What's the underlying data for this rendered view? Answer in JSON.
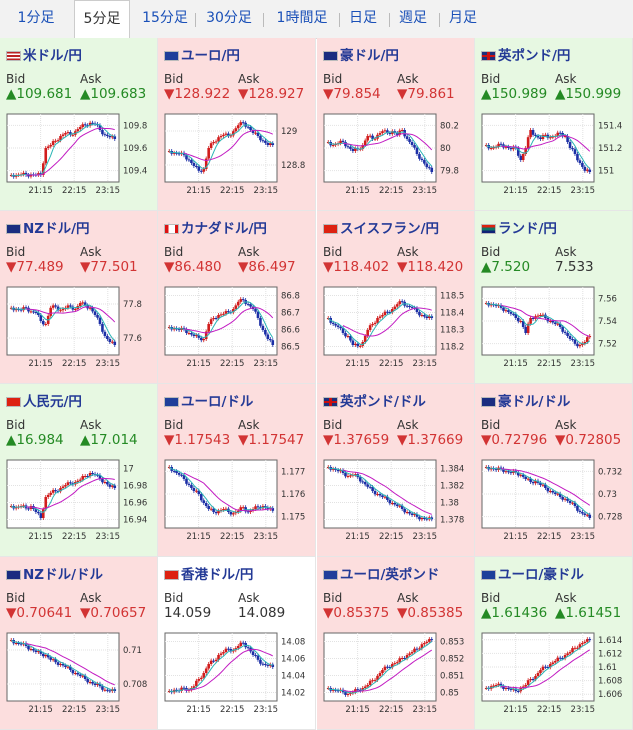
{
  "tabs": [
    "1分足",
    "5分足",
    "15分足",
    "30分足",
    "1時間足",
    "日足",
    "週足",
    "月足"
  ],
  "active_tab": 1,
  "labels": {
    "bid": "Bid",
    "ask": "Ask"
  },
  "colors": {
    "up_bg": "#e7f8e2",
    "down_bg": "#fcdede",
    "bull": "#d11c1c",
    "bear": "#1c2fa6",
    "ma1": "#2ab5b5",
    "ma2": "#c21bc2"
  },
  "x_ticks": [
    "21:15",
    "22:15",
    "23:15"
  ],
  "pairs": [
    {
      "name": "米ドル/円",
      "flag": "us",
      "dir": "up",
      "bid": "▲109.681",
      "ask": "▲109.683",
      "yticks": [
        "109.8",
        "109.6",
        "109.4"
      ],
      "series": [
        0.05,
        0.05,
        0.06,
        0.05,
        0.06,
        0.05,
        0.05,
        0.5,
        0.55,
        0.62,
        0.7,
        0.75,
        0.72,
        0.78,
        0.85,
        0.88,
        0.92,
        0.9,
        0.8,
        0.72,
        0.68,
        0.65
      ]
    },
    {
      "name": "ユーロ/円",
      "flag": "eu",
      "dir": "down",
      "bid": "▼128.922",
      "ask": "▼128.927",
      "yticks": [
        "129",
        "128.8"
      ],
      "series": [
        0.45,
        0.42,
        0.4,
        0.38,
        0.3,
        0.2,
        0.12,
        0.15,
        0.5,
        0.6,
        0.68,
        0.72,
        0.7,
        0.78,
        0.88,
        0.92,
        0.85,
        0.75,
        0.7,
        0.62,
        0.55,
        0.55
      ]
    },
    {
      "name": "豪ドル/円",
      "flag": "au",
      "dir": "down",
      "bid": "▼79.854",
      "ask": "▼79.861",
      "yticks": [
        "80.2",
        "80",
        "79.8"
      ],
      "series": [
        0.6,
        0.55,
        0.58,
        0.6,
        0.52,
        0.45,
        0.48,
        0.55,
        0.7,
        0.65,
        0.72,
        0.78,
        0.75,
        0.78,
        0.72,
        0.8,
        0.65,
        0.55,
        0.4,
        0.3,
        0.18,
        0.1
      ]
    },
    {
      "name": "英ポンド/円",
      "flag": "gb",
      "dir": "up",
      "bid": "▲150.989",
      "ask": "▲150.999",
      "yticks": [
        "151.4",
        "151.2",
        "151"
      ],
      "series": [
        0.55,
        0.5,
        0.52,
        0.56,
        0.52,
        0.48,
        0.5,
        0.3,
        0.5,
        0.8,
        0.7,
        0.65,
        0.72,
        0.68,
        0.7,
        0.75,
        0.7,
        0.5,
        0.4,
        0.25,
        0.12,
        0.1
      ]
    },
    {
      "name": "NZドル/円",
      "flag": "nz",
      "dir": "down",
      "bid": "▼77.489",
      "ask": "▼77.501",
      "yticks": [
        "77.8",
        "77.6"
      ],
      "series": [
        0.72,
        0.7,
        0.68,
        0.72,
        0.66,
        0.64,
        0.5,
        0.45,
        0.72,
        0.74,
        0.68,
        0.72,
        0.74,
        0.7,
        0.8,
        0.76,
        0.72,
        0.6,
        0.45,
        0.25,
        0.15,
        0.1
      ]
    },
    {
      "name": "カナダドル/円",
      "flag": "ca",
      "dir": "down",
      "bid": "▼86.480",
      "ask": "▼86.497",
      "yticks": [
        "86.8",
        "86.7",
        "86.6",
        "86.5"
      ],
      "series": [
        0.4,
        0.38,
        0.35,
        0.36,
        0.3,
        0.25,
        0.22,
        0.2,
        0.45,
        0.55,
        0.6,
        0.62,
        0.65,
        0.7,
        0.82,
        0.85,
        0.78,
        0.7,
        0.55,
        0.35,
        0.2,
        0.1
      ]
    },
    {
      "name": "スイスフラン/円",
      "flag": "ch",
      "dir": "down",
      "bid": "▼118.402",
      "ask": "▼118.420",
      "yticks": [
        "118.5",
        "118.4",
        "118.3",
        "118.2"
      ],
      "series": [
        0.55,
        0.45,
        0.4,
        0.3,
        0.25,
        0.1,
        0.08,
        0.15,
        0.35,
        0.45,
        0.55,
        0.6,
        0.65,
        0.7,
        0.78,
        0.82,
        0.75,
        0.72,
        0.65,
        0.6,
        0.55,
        0.55
      ]
    },
    {
      "name": "ランド/円",
      "flag": "za",
      "dir": "up",
      "bid": "▲7.520",
      "ask": "7.533",
      "yticks": [
        "7.56",
        "7.54",
        "7.52"
      ],
      "series": [
        0.8,
        0.78,
        0.75,
        0.72,
        0.68,
        0.62,
        0.55,
        0.5,
        0.3,
        0.55,
        0.58,
        0.6,
        0.55,
        0.5,
        0.45,
        0.4,
        0.3,
        0.2,
        0.12,
        0.1,
        0.15,
        0.25
      ]
    },
    {
      "name": "人民元/円",
      "flag": "cn",
      "dir": "up",
      "bid": "▲16.984",
      "ask": "▲17.014",
      "yticks": [
        "17",
        "16.98",
        "16.96",
        "16.94"
      ],
      "series": [
        0.3,
        0.28,
        0.3,
        0.26,
        0.3,
        0.2,
        0.1,
        0.45,
        0.52,
        0.55,
        0.6,
        0.65,
        0.68,
        0.7,
        0.74,
        0.8,
        0.85,
        0.82,
        0.75,
        0.7,
        0.62,
        0.6
      ]
    },
    {
      "name": "ユーロ/ドル",
      "flag": "eu",
      "dir": "down",
      "bid": "▼1.17543",
      "ask": "▼1.17547",
      "yticks": [
        "1.177",
        "1.176",
        "1.175"
      ],
      "series": [
        0.95,
        0.88,
        0.82,
        0.75,
        0.65,
        0.55,
        0.5,
        0.35,
        0.25,
        0.2,
        0.22,
        0.25,
        0.2,
        0.18,
        0.22,
        0.28,
        0.2,
        0.25,
        0.28,
        0.3,
        0.25,
        0.22
      ]
    },
    {
      "name": "英ポンド/ドル",
      "flag": "gb",
      "dir": "down",
      "bid": "▼1.37659",
      "ask": "▼1.37669",
      "yticks": [
        "1.384",
        "1.382",
        "1.38",
        "1.378"
      ],
      "series": [
        0.95,
        0.92,
        0.88,
        0.85,
        0.8,
        0.82,
        0.78,
        0.7,
        0.62,
        0.55,
        0.5,
        0.45,
        0.4,
        0.35,
        0.3,
        0.25,
        0.2,
        0.15,
        0.12,
        0.1,
        0.08,
        0.08
      ]
    },
    {
      "name": "豪ドル/ドル",
      "flag": "au",
      "dir": "down",
      "bid": "▼0.72796",
      "ask": "▼0.72805",
      "yticks": [
        "0.732",
        "0.73",
        "0.728"
      ],
      "series": [
        0.95,
        0.93,
        0.9,
        0.92,
        0.88,
        0.85,
        0.86,
        0.82,
        0.75,
        0.7,
        0.72,
        0.65,
        0.6,
        0.55,
        0.5,
        0.45,
        0.42,
        0.35,
        0.3,
        0.2,
        0.15,
        0.1
      ]
    },
    {
      "name": "NZドル/ドル",
      "flag": "nz",
      "dir": "down",
      "bid": "▼0.70641",
      "ask": "▼0.70657",
      "yticks": [
        "0.71",
        "0.708"
      ],
      "series": [
        0.95,
        0.9,
        0.88,
        0.85,
        0.8,
        0.75,
        0.72,
        0.7,
        0.62,
        0.58,
        0.55,
        0.5,
        0.45,
        0.4,
        0.35,
        0.3,
        0.25,
        0.2,
        0.18,
        0.12,
        0.1,
        0.1
      ]
    },
    {
      "name": "香港ドル/円",
      "flag": "hk",
      "dir": "flat",
      "bid": "14.059",
      "ask": "14.089",
      "yticks": [
        "14.08",
        "14.06",
        "14.04",
        "14.02"
      ],
      "series": [
        0.1,
        0.12,
        0.1,
        0.15,
        0.12,
        0.18,
        0.3,
        0.4,
        0.55,
        0.6,
        0.7,
        0.75,
        0.8,
        0.78,
        0.85,
        0.9,
        0.82,
        0.7,
        0.62,
        0.55,
        0.52,
        0.5
      ]
    },
    {
      "name": "ユーロ/英ポンド",
      "flag": "eu",
      "dir": "down",
      "bid": "▼0.85375",
      "ask": "▼0.85385",
      "yticks": [
        "0.853",
        "0.852",
        "0.851",
        "0.85"
      ],
      "series": [
        0.15,
        0.12,
        0.1,
        0.08,
        0.05,
        0.08,
        0.12,
        0.15,
        0.2,
        0.28,
        0.35,
        0.45,
        0.5,
        0.55,
        0.58,
        0.65,
        0.7,
        0.75,
        0.8,
        0.88,
        0.92,
        0.95
      ]
    },
    {
      "name": "ユーロ/豪ドル",
      "flag": "eu",
      "dir": "up",
      "bid": "▲1.61436",
      "ask": "▲1.61451",
      "yticks": [
        "1.614",
        "1.612",
        "1.61",
        "1.608",
        "1.606"
      ],
      "series": [
        0.15,
        0.18,
        0.2,
        0.18,
        0.15,
        0.12,
        0.1,
        0.15,
        0.2,
        0.3,
        0.35,
        0.45,
        0.5,
        0.55,
        0.6,
        0.65,
        0.7,
        0.75,
        0.82,
        0.88,
        0.92,
        0.95
      ]
    }
  ]
}
